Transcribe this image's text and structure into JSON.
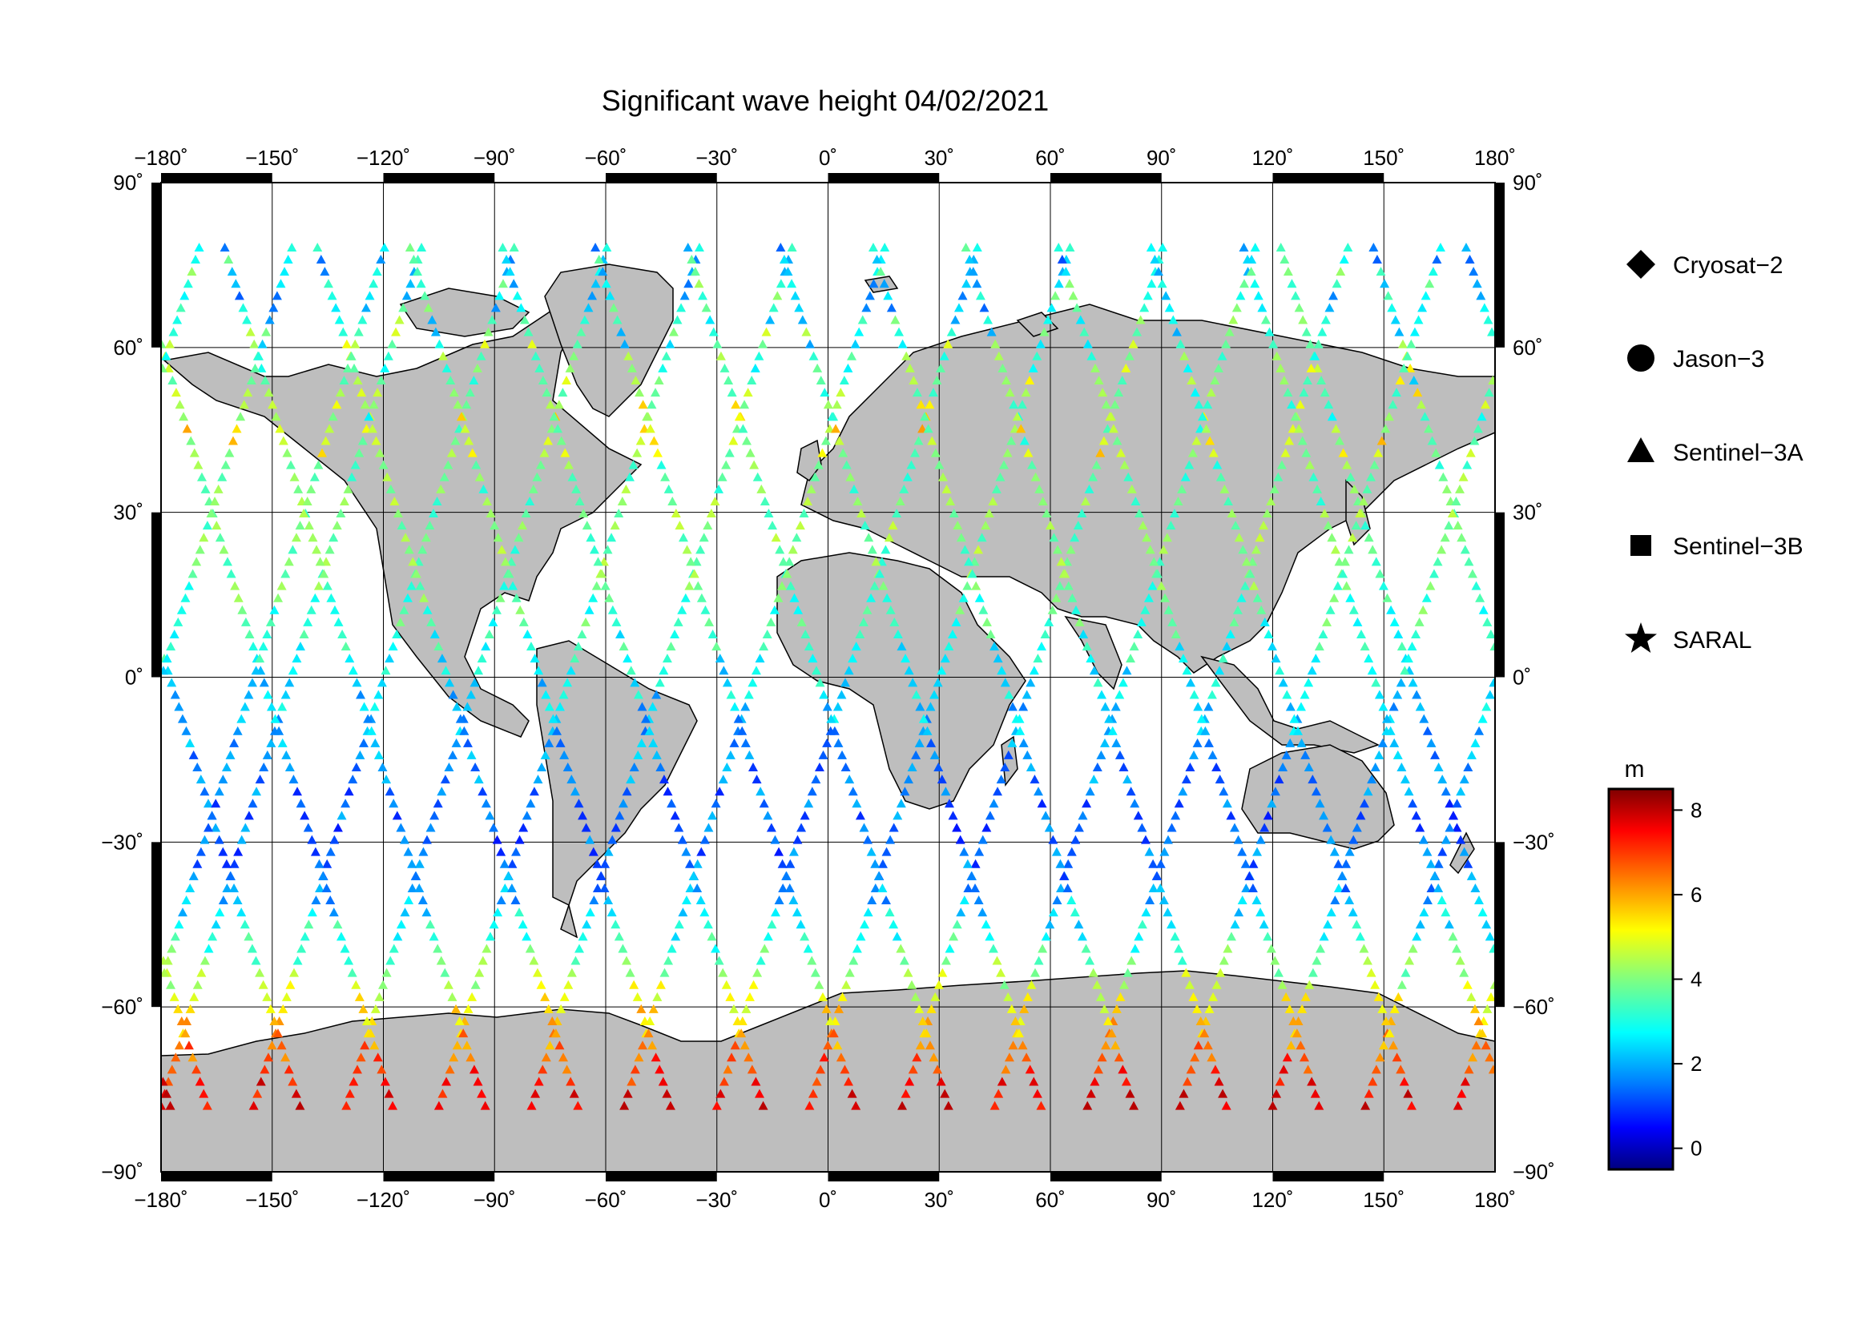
{
  "title": "Significant wave height 04/02/2021",
  "axes": {
    "lon_ticks": [
      "−180˚",
      "−150˚",
      "−120˚",
      "−90˚",
      "−60˚",
      "−30˚",
      "0˚",
      "30˚",
      "60˚",
      "90˚",
      "120˚",
      "150˚",
      "180˚"
    ],
    "lat_ticks_left": [
      "90˚",
      "60˚",
      "30˚",
      "0˚",
      "−30˚",
      "−60˚",
      "−90˚"
    ],
    "lat_ticks_right": [
      "90˚",
      "60˚",
      "30˚",
      "0˚",
      "−30˚",
      "−60˚",
      "−90˚"
    ],
    "xlim": [
      -180,
      180
    ],
    "ylim": [
      -90,
      90
    ]
  },
  "legend": [
    {
      "label": "Cryosat−2",
      "symbol": "diamond-icon"
    },
    {
      "label": "Jason−3",
      "symbol": "circle-icon"
    },
    {
      "label": "Sentinel−3A",
      "symbol": "triangle-icon"
    },
    {
      "label": "Sentinel−3B",
      "symbol": "square-icon"
    },
    {
      "label": "SARAL",
      "symbol": "star-icon"
    }
  ],
  "colorbar": {
    "unit": "m",
    "ticks": [
      "8",
      "6",
      "4",
      "2",
      "0"
    ],
    "range": [
      -0.5,
      8.5
    ]
  },
  "colors": {
    "land": "#bebebe",
    "ocean": "#ffffff",
    "frame": "#000000"
  }
}
